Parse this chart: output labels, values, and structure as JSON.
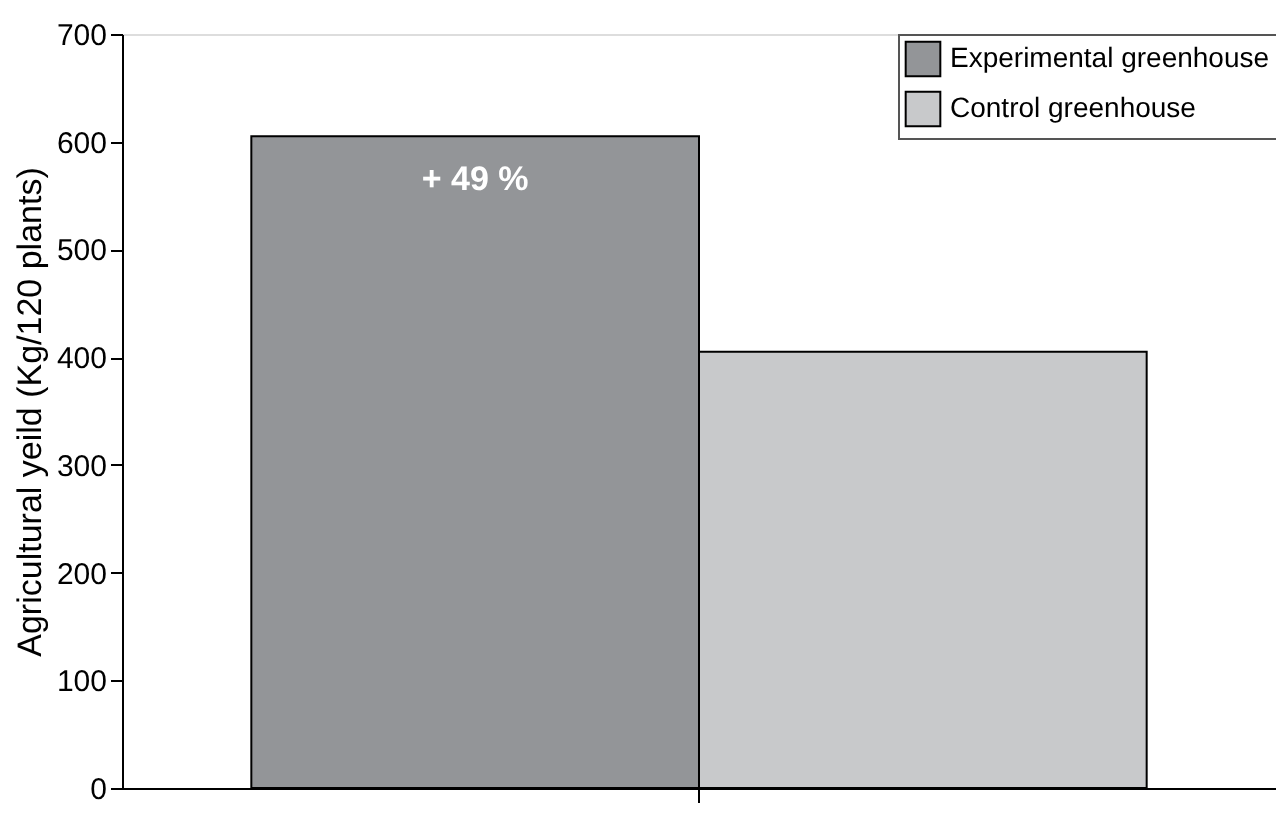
{
  "chart_data": {
    "type": "bar",
    "ylabel": "Agricultural yeild (Kg/120 plants)",
    "categories": [
      null
    ],
    "series": [
      {
        "name": "Experimental greenhouse",
        "color": "#939598",
        "values": [
          605
        ]
      },
      {
        "name": "Control greenhouse",
        "color": "#c8c9cb",
        "values": [
          405
        ]
      }
    ],
    "ylim": [
      0,
      700
    ],
    "yticks": [
      0,
      100,
      200,
      300,
      400,
      500,
      600,
      700
    ],
    "annotations": [
      "+ 49 %"
    ],
    "legend": "top right",
    "grid": false
  }
}
